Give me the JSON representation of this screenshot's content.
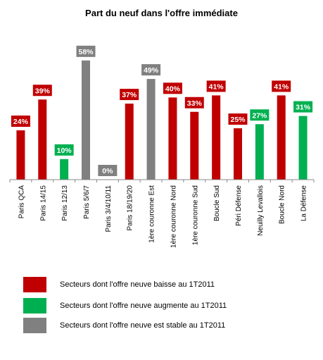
{
  "chart_data": {
    "type": "bar",
    "title": "Part du neuf dans l'offre immédiate",
    "xlabel": "",
    "ylabel": "",
    "ylim": [
      0,
      60
    ],
    "grid": false,
    "legend_position": "bottom",
    "categories": [
      "Paris QCA",
      "Paris 14/15",
      "Paris 12/13",
      "Paris 5/6/7",
      "Paris 3/4/10/11",
      "Paris 18/19/20",
      "1ère couronne Est",
      "1ère couronne Nord",
      "1ère couronne Sud",
      "Boucle Sud",
      "Péri Défense",
      "Neuilly Levallois",
      "Boucle Nord",
      "La Défense"
    ],
    "values": [
      24,
      39,
      10,
      58,
      0,
      37,
      49,
      40,
      33,
      41,
      25,
      27,
      41,
      31
    ],
    "value_labels": [
      "24%",
      "39%",
      "10%",
      "58%",
      "0%",
      "37%",
      "49%",
      "40%",
      "33%",
      "41%",
      "25%",
      "27%",
      "41%",
      "31%"
    ],
    "groups": [
      "baisse",
      "baisse",
      "augmente",
      "stable",
      "stable",
      "baisse",
      "stable",
      "baisse",
      "baisse",
      "baisse",
      "baisse",
      "augmente",
      "baisse",
      "augmente"
    ],
    "colors": {
      "baisse": "#c00000",
      "augmente": "#00b050",
      "stable": "#808080"
    },
    "legend": [
      {
        "group": "baisse",
        "label": "Secteurs dont l'offre neuve baisse au 1T2011"
      },
      {
        "group": "augmente",
        "label": "Secteurs dont l'offre neuve augmente au 1T2011"
      },
      {
        "group": "stable",
        "label": "Secteurs dont l'offre neuve est stable au 1T2011"
      }
    ]
  }
}
